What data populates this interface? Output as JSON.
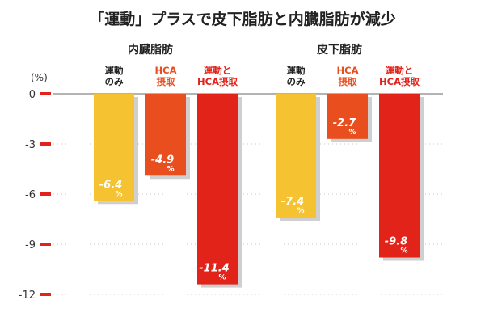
{
  "chart_data": {
    "type": "bar",
    "title": "「運動」プラスで皮下脂肪と内臓脂肪が減少",
    "yunit": "(%)",
    "ylim": [
      -12,
      0
    ],
    "yticks": [
      "0",
      "-3",
      "-6",
      "-9",
      "-12"
    ],
    "ytick_values": [
      0,
      -3,
      -6,
      -9,
      -12
    ],
    "grid": true,
    "value_unit": "%",
    "groups": [
      {
        "name": "内臓脂肪",
        "categories": [
          {
            "label": [
              "運動",
              "のみ"
            ],
            "value": -6.4,
            "value_label": "-6.4",
            "color": "#f5c231",
            "label_color": "#222222"
          },
          {
            "label": [
              "HCA",
              "摂取"
            ],
            "value": -4.9,
            "value_label": "-4.9",
            "color": "#e94e1f",
            "label_color": "#e94e1f"
          },
          {
            "label": [
              "運動と",
              "HCA摂取"
            ],
            "value": -11.4,
            "value_label": "-11.4",
            "color": "#e2231a",
            "label_color": "#e2231a"
          }
        ]
      },
      {
        "name": "皮下脂肪",
        "categories": [
          {
            "label": [
              "運動",
              "のみ"
            ],
            "value": -7.4,
            "value_label": "-7.4",
            "color": "#f5c231",
            "label_color": "#222222"
          },
          {
            "label": [
              "HCA",
              "摂取"
            ],
            "value": -2.7,
            "value_label": "-2.7",
            "color": "#e94e1f",
            "label_color": "#e94e1f"
          },
          {
            "label": [
              "運動と",
              "HCA摂取"
            ],
            "value": -9.8,
            "value_label": "-9.8",
            "color": "#e2231a",
            "label_color": "#e2231a"
          }
        ]
      }
    ],
    "colors": {
      "tick_marker": "#e2231a",
      "zero_line": "#9a9a9a",
      "grid": "#c8c8c8",
      "bar_shadow": "#cfcfcf"
    }
  }
}
